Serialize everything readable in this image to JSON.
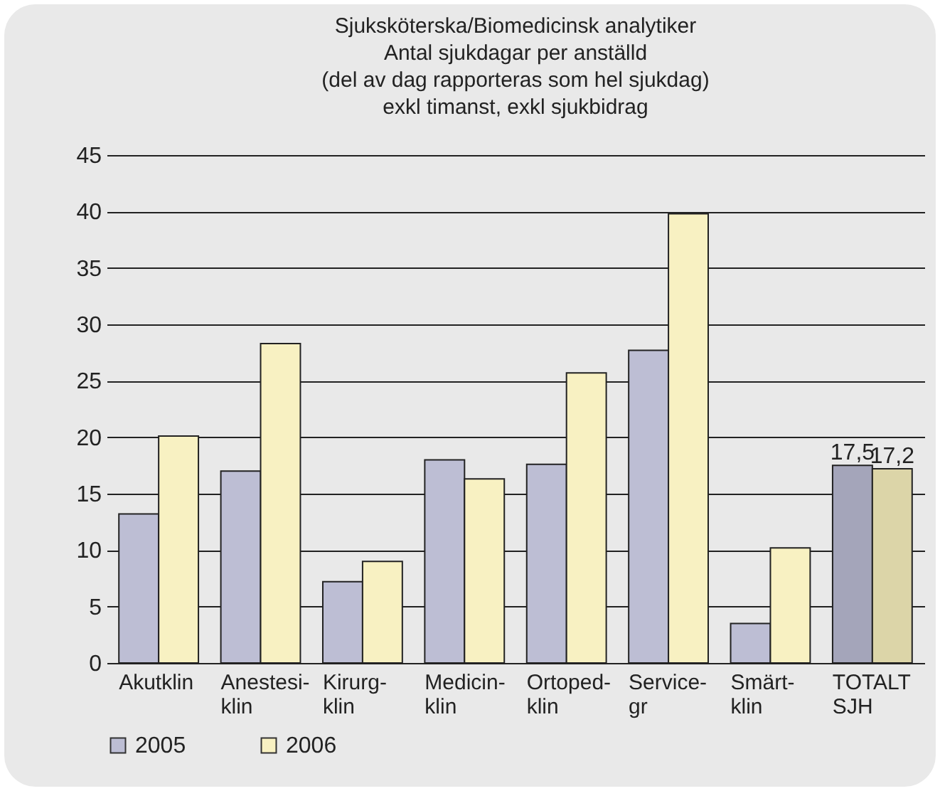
{
  "chart_data": {
    "type": "bar",
    "title": [
      "Sjuksköterska/Biomedicinsk analytiker",
      "Antal sjukdagar per anställd",
      "(del av dag rapporteras som hel sjukdag)",
      "exkl timanst, exkl sjukbidrag"
    ],
    "categories": [
      "Akutklin",
      "Anestesi-\nklin",
      "Kirurg-\nklin",
      "Medicin-\nklin",
      "Ortoped-\nklin",
      "Service-\ngr",
      "Smärt-\nklin",
      "TOTALT\nSJH"
    ],
    "series": [
      {
        "name": "2005",
        "color": "#bdbed4",
        "colors": [
          "#bdbed4",
          "#bdbed4",
          "#bdbed4",
          "#bdbed4",
          "#bdbed4",
          "#bdbed4",
          "#bdbed4",
          "#a4a5ba"
        ],
        "values": [
          13.2,
          17.0,
          7.2,
          18.0,
          17.6,
          27.7,
          3.5,
          17.5
        ],
        "value_labels": [
          null,
          null,
          null,
          null,
          null,
          null,
          null,
          "17,5"
        ]
      },
      {
        "name": "2006",
        "color": "#f8f1c2",
        "colors": [
          "#f8f1c2",
          "#f8f1c2",
          "#f8f1c2",
          "#f8f1c2",
          "#f8f1c2",
          "#f8f1c2",
          "#f8f1c2",
          "#dcd5a8"
        ],
        "values": [
          20.1,
          28.3,
          9.0,
          16.3,
          25.7,
          39.8,
          10.2,
          17.2
        ],
        "value_labels": [
          null,
          null,
          null,
          null,
          null,
          null,
          null,
          "17,2"
        ]
      }
    ],
    "ylim": [
      0,
      45
    ],
    "yticks": [
      0,
      5,
      10,
      15,
      20,
      25,
      30,
      35,
      40,
      45
    ],
    "grid": "y",
    "legend": "bottom"
  }
}
